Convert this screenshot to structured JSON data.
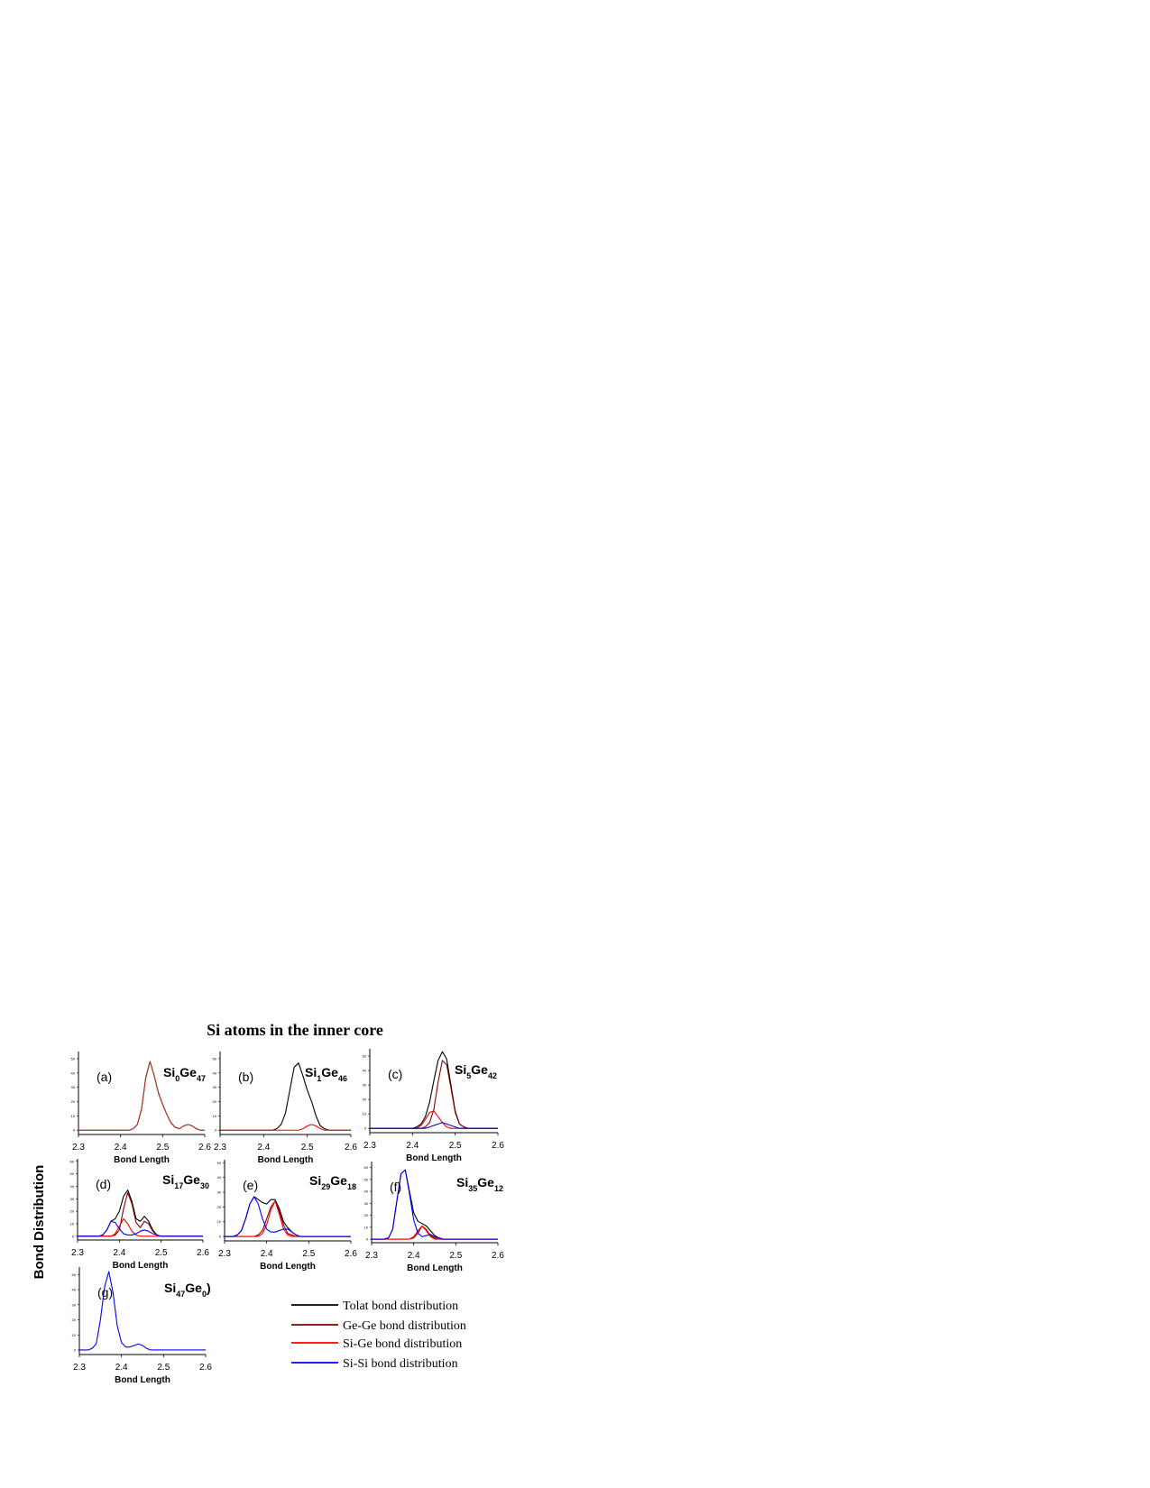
{
  "figure": {
    "title": "Si atoms in the inner core",
    "ylabel": "Bond Distribution",
    "legend": [
      {
        "name": "Tolat bond distribution",
        "color": "#000000"
      },
      {
        "name": "Ge-Ge bond distribution",
        "color": "#8b0000"
      },
      {
        "name": "Si-Ge bond distribution",
        "color": "#ff0000"
      },
      {
        "name": "Si-Si bond distribution",
        "color": "#0000ff"
      }
    ]
  },
  "chart_data": [
    {
      "type": "line",
      "label": "(a)",
      "formula": [
        "Si",
        "0",
        "Ge",
        "47"
      ],
      "xlabel": "Bond Length",
      "x": [
        2.3,
        2.31,
        2.32,
        2.33,
        2.34,
        2.35,
        2.36,
        2.37,
        2.38,
        2.39,
        2.4,
        2.41,
        2.42,
        2.43,
        2.44,
        2.45,
        2.46,
        2.47,
        2.48,
        2.49,
        2.5,
        2.51,
        2.52,
        2.53,
        2.54,
        2.55,
        2.56,
        2.57,
        2.58,
        2.59,
        2.6
      ],
      "xlim": [
        2.3,
        2.6
      ],
      "xticks": [
        2.3,
        2.4,
        2.5,
        2.6
      ],
      "ylim": [
        -3,
        55
      ],
      "yticks": [
        0,
        10,
        20,
        30,
        40,
        50
      ],
      "series": [
        {
          "color": "#000000",
          "values": [
            0,
            0,
            0,
            0,
            0,
            0,
            0,
            0,
            0,
            0,
            0,
            0,
            0,
            1,
            4,
            15,
            37,
            48,
            38,
            26,
            18,
            11,
            5,
            2,
            1,
            3,
            4,
            3,
            1,
            0,
            0
          ]
        },
        {
          "color": "#c0392b",
          "values": [
            0,
            0,
            0,
            0,
            0,
            0,
            0,
            0,
            0,
            0,
            0,
            0,
            0,
            1,
            4,
            15,
            37,
            48,
            38,
            26,
            18,
            11,
            5,
            2,
            1,
            3,
            4,
            3,
            1,
            0,
            0
          ]
        }
      ]
    },
    {
      "type": "line",
      "label": "(b)",
      "formula": [
        "Si",
        "1",
        "Ge",
        "46"
      ],
      "xlabel": "Bond Length",
      "x": [
        2.3,
        2.31,
        2.32,
        2.33,
        2.34,
        2.35,
        2.36,
        2.37,
        2.38,
        2.39,
        2.4,
        2.41,
        2.42,
        2.43,
        2.44,
        2.45,
        2.46,
        2.47,
        2.48,
        2.49,
        2.5,
        2.51,
        2.52,
        2.53,
        2.54,
        2.55,
        2.56,
        2.57,
        2.58,
        2.59,
        2.6
      ],
      "xlim": [
        2.3,
        2.6
      ],
      "xticks": [
        2.3,
        2.4,
        2.5,
        2.6
      ],
      "ylim": [
        -3,
        55
      ],
      "yticks": [
        0,
        10,
        20,
        30,
        40,
        50
      ],
      "series": [
        {
          "color": "#000000",
          "values": [
            0,
            0,
            0,
            0,
            0,
            0,
            0,
            0,
            0,
            0,
            0,
            0,
            0,
            1,
            4,
            12,
            28,
            44,
            47,
            38,
            28,
            20,
            10,
            3,
            1,
            0,
            0,
            0,
            0,
            0,
            0
          ]
        },
        {
          "color": "#ff0000",
          "values": [
            0,
            0,
            0,
            0,
            0,
            0,
            0,
            0,
            0,
            0,
            0,
            0,
            0,
            0,
            0,
            0,
            0,
            0,
            0,
            1,
            3,
            4,
            3,
            1,
            0,
            0,
            0,
            0,
            0,
            0,
            0
          ]
        }
      ]
    },
    {
      "type": "line",
      "label": "(c)",
      "formula": [
        "Si",
        "5",
        "Ge",
        "42"
      ],
      "xlabel": "Bond Length",
      "x": [
        2.3,
        2.31,
        2.32,
        2.33,
        2.34,
        2.35,
        2.36,
        2.37,
        2.38,
        2.39,
        2.4,
        2.41,
        2.42,
        2.43,
        2.44,
        2.45,
        2.46,
        2.47,
        2.48,
        2.49,
        2.5,
        2.51,
        2.52,
        2.53,
        2.54,
        2.55,
        2.56,
        2.57,
        2.58,
        2.59,
        2.6
      ],
      "xlim": [
        2.3,
        2.6
      ],
      "xticks": [
        2.3,
        2.4,
        2.5,
        2.6
      ],
      "ylim": [
        -3,
        55
      ],
      "yticks": [
        0,
        10,
        20,
        30,
        40,
        50
      ],
      "series": [
        {
          "color": "#000000",
          "values": [
            0,
            0,
            0,
            0,
            0,
            0,
            0,
            0,
            0,
            0,
            0,
            1,
            3,
            8,
            18,
            33,
            47,
            53,
            48,
            30,
            12,
            3,
            1,
            0,
            0,
            0,
            0,
            0,
            0,
            0,
            0
          ]
        },
        {
          "color": "#8b0000",
          "values": [
            0,
            0,
            0,
            0,
            0,
            0,
            0,
            0,
            0,
            0,
            0,
            0,
            0,
            1,
            4,
            13,
            32,
            47,
            44,
            28,
            11,
            3,
            1,
            0,
            0,
            0,
            0,
            0,
            0,
            0,
            0
          ]
        },
        {
          "color": "#ff0000",
          "values": [
            0,
            0,
            0,
            0,
            0,
            0,
            0,
            0,
            0,
            0,
            0,
            0,
            2,
            6,
            11,
            12,
            8,
            4,
            1,
            0,
            0,
            0,
            0,
            0,
            0,
            0,
            0,
            0,
            0,
            0,
            0
          ]
        },
        {
          "color": "#0000ff",
          "values": [
            0,
            0,
            0,
            0,
            0,
            0,
            0,
            0,
            0,
            0,
            0,
            0,
            0,
            0,
            1,
            2,
            3,
            4,
            3,
            2,
            1,
            0,
            0,
            0,
            0,
            0,
            0,
            0,
            0,
            0,
            0
          ]
        }
      ]
    },
    {
      "type": "line",
      "label": "(d)",
      "formula": [
        "Si",
        "17",
        "Ge",
        "30"
      ],
      "xlabel": "Bond Length",
      "x": [
        2.3,
        2.31,
        2.32,
        2.33,
        2.34,
        2.35,
        2.36,
        2.37,
        2.38,
        2.39,
        2.4,
        2.41,
        2.42,
        2.43,
        2.44,
        2.45,
        2.46,
        2.47,
        2.48,
        2.49,
        2.5,
        2.51,
        2.52,
        2.53,
        2.54,
        2.55,
        2.56,
        2.57,
        2.58,
        2.59,
        2.6
      ],
      "xlim": [
        2.3,
        2.6
      ],
      "xticks": [
        2.3,
        2.4,
        2.5,
        2.6
      ],
      "ylim": [
        -3,
        62
      ],
      "yticks": [
        0,
        10,
        20,
        30,
        40,
        50,
        60
      ],
      "series": [
        {
          "color": "#000000",
          "values": [
            0,
            0,
            0,
            0,
            0,
            0,
            1,
            5,
            12,
            14,
            20,
            32,
            37,
            28,
            14,
            12,
            16,
            12,
            5,
            1,
            0,
            0,
            0,
            0,
            0,
            0,
            0,
            0,
            0,
            0,
            0
          ]
        },
        {
          "color": "#8b0000",
          "values": [
            0,
            0,
            0,
            0,
            0,
            0,
            0,
            0,
            0,
            1,
            5,
            22,
            35,
            26,
            11,
            7,
            12,
            10,
            4,
            1,
            0,
            0,
            0,
            0,
            0,
            0,
            0,
            0,
            0,
            0,
            0
          ]
        },
        {
          "color": "#ff0000",
          "values": [
            0,
            0,
            0,
            0,
            0,
            0,
            0,
            0,
            0,
            2,
            8,
            14,
            10,
            4,
            1,
            0,
            0,
            0,
            0,
            0,
            0,
            0,
            0,
            0,
            0,
            0,
            0,
            0,
            0,
            0,
            0
          ]
        },
        {
          "color": "#0000ff",
          "values": [
            0,
            0,
            0,
            0,
            0,
            0,
            1,
            5,
            12,
            11,
            6,
            2,
            1,
            1,
            2,
            4,
            5,
            4,
            2,
            1,
            0,
            0,
            0,
            0,
            0,
            0,
            0,
            0,
            0,
            0,
            0
          ]
        }
      ]
    },
    {
      "type": "line",
      "label": "(e)",
      "formula": [
        "Si",
        "29",
        "Ge",
        "18"
      ],
      "xlabel": "Bond Length",
      "x": [
        2.3,
        2.31,
        2.32,
        2.33,
        2.34,
        2.35,
        2.36,
        2.37,
        2.38,
        2.39,
        2.4,
        2.41,
        2.42,
        2.43,
        2.44,
        2.45,
        2.46,
        2.47,
        2.48,
        2.49,
        2.5,
        2.51,
        2.52,
        2.53,
        2.54,
        2.55,
        2.56,
        2.57,
        2.58,
        2.59,
        2.6
      ],
      "xlim": [
        2.3,
        2.6
      ],
      "xticks": [
        2.3,
        2.4,
        2.5,
        2.6
      ],
      "ylim": [
        -3,
        52
      ],
      "yticks": [
        0,
        10,
        20,
        30,
        40,
        50
      ],
      "series": [
        {
          "color": "#000000",
          "values": [
            0,
            0,
            0,
            1,
            4,
            12,
            22,
            27,
            25,
            23,
            22,
            25,
            25,
            19,
            10,
            6,
            3,
            1,
            0,
            0,
            0,
            0,
            0,
            0,
            0,
            0,
            0,
            0,
            0,
            0,
            0
          ]
        },
        {
          "color": "#8b0000",
          "values": [
            0,
            0,
            0,
            0,
            0,
            0,
            0,
            0,
            1,
            4,
            12,
            20,
            24,
            17,
            8,
            2,
            1,
            0,
            0,
            0,
            0,
            0,
            0,
            0,
            0,
            0,
            0,
            0,
            0,
            0,
            0
          ]
        },
        {
          "color": "#ff0000",
          "values": [
            0,
            0,
            0,
            0,
            0,
            0,
            0,
            0,
            0,
            2,
            8,
            18,
            24,
            15,
            5,
            1,
            0,
            0,
            0,
            0,
            0,
            0,
            0,
            0,
            0,
            0,
            0,
            0,
            0,
            0,
            0
          ]
        },
        {
          "color": "#0000ff",
          "values": [
            0,
            0,
            0,
            1,
            4,
            12,
            22,
            27,
            22,
            12,
            5,
            3,
            3,
            4,
            5,
            5,
            3,
            1,
            0,
            0,
            0,
            0,
            0,
            0,
            0,
            0,
            0,
            0,
            0,
            0,
            0
          ]
        }
      ]
    },
    {
      "type": "line",
      "label": "(f)",
      "formula": [
        "Si",
        "35",
        "Ge",
        "12"
      ],
      "xlabel": "Bond Length",
      "x": [
        2.3,
        2.31,
        2.32,
        2.33,
        2.34,
        2.35,
        2.36,
        2.37,
        2.38,
        2.39,
        2.4,
        2.41,
        2.42,
        2.43,
        2.44,
        2.45,
        2.46,
        2.47,
        2.48,
        2.49,
        2.5,
        2.51,
        2.52,
        2.53,
        2.54,
        2.55,
        2.56,
        2.57,
        2.58,
        2.59,
        2.6
      ],
      "xlim": [
        2.3,
        2.6
      ],
      "xticks": [
        2.3,
        2.4,
        2.5,
        2.6
      ],
      "ylim": [
        -3,
        65
      ],
      "yticks": [
        0,
        10,
        20,
        30,
        40,
        50,
        60
      ],
      "series": [
        {
          "color": "#000000",
          "values": [
            0,
            0,
            0,
            0,
            1,
            8,
            32,
            55,
            58,
            40,
            22,
            15,
            13,
            11,
            7,
            3,
            1,
            0,
            0,
            0,
            0,
            0,
            0,
            0,
            0,
            0,
            0,
            0,
            0,
            0,
            0
          ]
        },
        {
          "color": "#8b0000",
          "values": [
            0,
            0,
            0,
            0,
            0,
            0,
            0,
            0,
            0,
            0,
            1,
            5,
            11,
            8,
            3,
            1,
            0,
            0,
            0,
            0,
            0,
            0,
            0,
            0,
            0,
            0,
            0,
            0,
            0,
            0,
            0
          ]
        },
        {
          "color": "#ff0000",
          "values": [
            0,
            0,
            0,
            0,
            0,
            0,
            0,
            0,
            0,
            0,
            2,
            7,
            11,
            7,
            2,
            0,
            0,
            0,
            0,
            0,
            0,
            0,
            0,
            0,
            0,
            0,
            0,
            0,
            0,
            0,
            0
          ]
        },
        {
          "color": "#0000ff",
          "values": [
            0,
            0,
            0,
            0,
            1,
            8,
            32,
            55,
            58,
            38,
            16,
            5,
            2,
            3,
            4,
            2,
            1,
            0,
            0,
            0,
            0,
            0,
            0,
            0,
            0,
            0,
            0,
            0,
            0,
            0,
            0
          ]
        }
      ]
    },
    {
      "type": "line",
      "label": "(g)",
      "formula": [
        "Si",
        "47",
        "Ge",
        "0",
        ")"
      ],
      "xlabel": "Bond Length",
      "x": [
        2.3,
        2.31,
        2.32,
        2.33,
        2.34,
        2.35,
        2.36,
        2.37,
        2.38,
        2.39,
        2.4,
        2.41,
        2.42,
        2.43,
        2.44,
        2.45,
        2.46,
        2.47,
        2.48,
        2.49,
        2.5,
        2.51,
        2.52,
        2.53,
        2.54,
        2.55,
        2.56,
        2.57,
        2.58,
        2.59,
        2.6
      ],
      "xlim": [
        2.3,
        2.6
      ],
      "xticks": [
        2.3,
        2.4,
        2.5,
        2.6
      ],
      "ylim": [
        -3,
        55
      ],
      "yticks": [
        0,
        10,
        20,
        30,
        40,
        50
      ],
      "series": [
        {
          "color": "#0000ff",
          "values": [
            0,
            0,
            0,
            1,
            4,
            20,
            42,
            52,
            38,
            16,
            5,
            2,
            2,
            3,
            4,
            3,
            1,
            0,
            0,
            0,
            0,
            0,
            0,
            0,
            0,
            0,
            0,
            0,
            0,
            0,
            0
          ]
        }
      ]
    }
  ]
}
